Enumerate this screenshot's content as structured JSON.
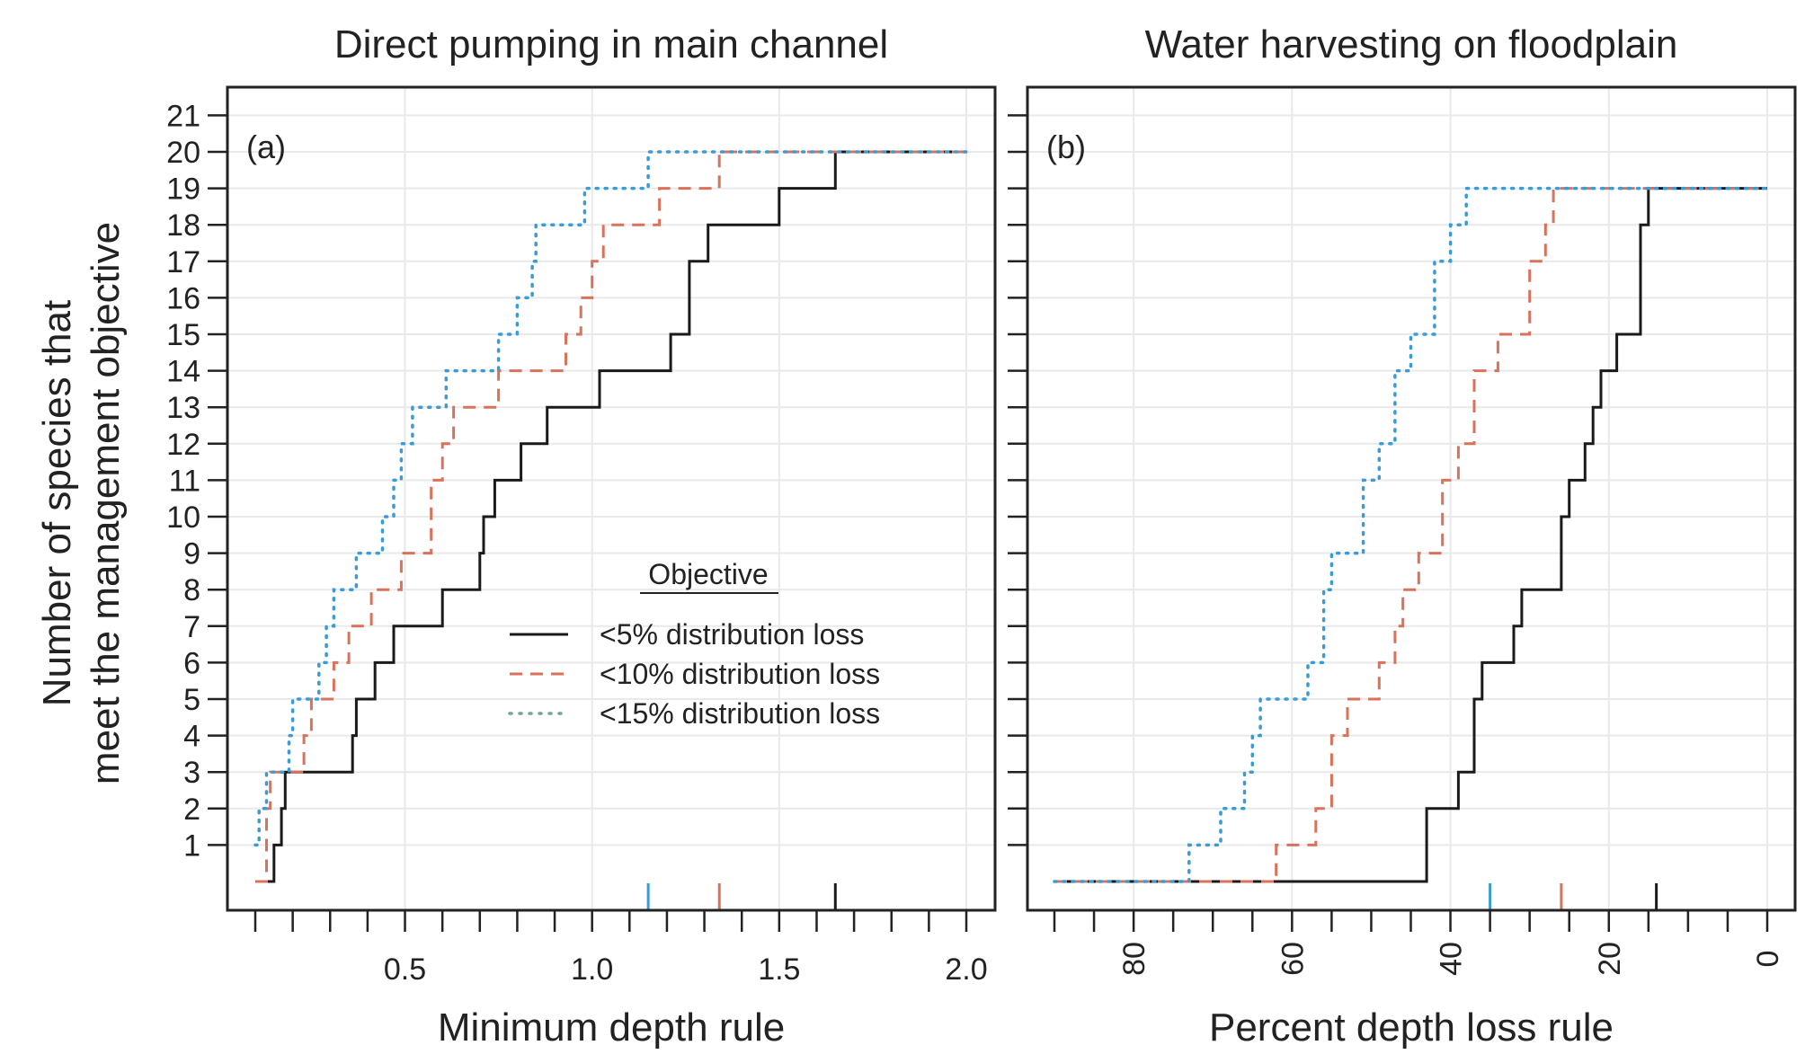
{
  "figure": {
    "ylabel_line1": "Number of species that",
    "ylabel_line2": "meet the management objective"
  },
  "legend": {
    "title": "Objective",
    "entries": [
      {
        "label": "<5% distribution loss",
        "color": "#1a1a1a",
        "dash": "solid"
      },
      {
        "label": "<10% distribution loss",
        "color": "#d9725b",
        "dash": "dashed"
      },
      {
        "label": "<15% distribution loss",
        "color": "#3a9bd5",
        "dash": "dotted"
      }
    ]
  },
  "chart_data": [
    {
      "type": "line",
      "panel_label": "(a)",
      "title": "Direct pumping in main channel",
      "xlabel": "Minimum depth rule",
      "xlim": [
        0.1,
        2.0
      ],
      "ylim": [
        0,
        21
      ],
      "x_ticks": [
        0.5,
        1.0,
        1.5,
        2.0
      ],
      "x_tick_labels": [
        "0.5",
        "1.0",
        "1.5",
        "2.0"
      ],
      "x_minor_step": 0.1,
      "y_ticks": [
        1,
        2,
        3,
        4,
        5,
        6,
        7,
        8,
        9,
        10,
        11,
        12,
        13,
        14,
        15,
        16,
        17,
        18,
        19,
        20,
        21
      ],
      "y_tick_labels": [
        "1",
        "2",
        "3",
        "4",
        "5",
        "6",
        "7",
        "8",
        "9",
        "10",
        "11",
        "12",
        "13",
        "14",
        "15",
        "16",
        "17",
        "18",
        "19",
        "20",
        "21"
      ],
      "grid": true,
      "x_reversed": false,
      "series": [
        {
          "name": "<5% distribution loss",
          "color": "#1a1a1a",
          "dash": "solid",
          "steps": [
            [
              0.1,
              0
            ],
            [
              0.15,
              1
            ],
            [
              0.17,
              2
            ],
            [
              0.18,
              3
            ],
            [
              0.36,
              4
            ],
            [
              0.37,
              5
            ],
            [
              0.39,
              5
            ],
            [
              0.42,
              6
            ],
            [
              0.45,
              6
            ],
            [
              0.47,
              7
            ],
            [
              0.57,
              7
            ],
            [
              0.6,
              8
            ],
            [
              0.67,
              8
            ],
            [
              0.7,
              9
            ],
            [
              0.71,
              10
            ],
            [
              0.73,
              10
            ],
            [
              0.74,
              11
            ],
            [
              0.79,
              11
            ],
            [
              0.81,
              12
            ],
            [
              0.86,
              12
            ],
            [
              0.88,
              13
            ],
            [
              0.99,
              13
            ],
            [
              1.02,
              14
            ],
            [
              1.19,
              14
            ],
            [
              1.21,
              15
            ],
            [
              1.23,
              15
            ],
            [
              1.26,
              17
            ],
            [
              1.29,
              17
            ],
            [
              1.31,
              18
            ],
            [
              1.46,
              18
            ],
            [
              1.5,
              19
            ],
            [
              1.62,
              19
            ],
            [
              1.65,
              20
            ],
            [
              2.0,
              20
            ]
          ],
          "rug_x": 1.65
        },
        {
          "name": "<10% distribution loss",
          "color": "#d9725b",
          "dash": "dashed",
          "steps": [
            [
              0.1,
              0
            ],
            [
              0.13,
              2
            ],
            [
              0.14,
              3
            ],
            [
              0.23,
              4
            ],
            [
              0.25,
              5
            ],
            [
              0.29,
              5
            ],
            [
              0.31,
              6
            ],
            [
              0.34,
              6
            ],
            [
              0.35,
              7
            ],
            [
              0.38,
              7
            ],
            [
              0.41,
              8
            ],
            [
              0.46,
              8
            ],
            [
              0.49,
              9
            ],
            [
              0.53,
              9
            ],
            [
              0.57,
              11
            ],
            [
              0.6,
              12
            ],
            [
              0.63,
              13
            ],
            [
              0.72,
              13
            ],
            [
              0.75,
              14
            ],
            [
              0.89,
              14
            ],
            [
              0.93,
              15
            ],
            [
              0.97,
              16
            ],
            [
              1.0,
              17
            ],
            [
              1.03,
              18
            ],
            [
              1.15,
              18
            ],
            [
              1.18,
              19
            ],
            [
              1.31,
              19
            ],
            [
              1.34,
              20
            ],
            [
              2.0,
              20
            ]
          ],
          "rug_x": 1.34
        },
        {
          "name": "<15% distribution loss",
          "color": "#3a9bd5",
          "dash": "dotted",
          "steps": [
            [
              0.1,
              1
            ],
            [
              0.11,
              2
            ],
            [
              0.13,
              3
            ],
            [
              0.17,
              3
            ],
            [
              0.19,
              4
            ],
            [
              0.2,
              5
            ],
            [
              0.23,
              5
            ],
            [
              0.27,
              6
            ],
            [
              0.29,
              7
            ],
            [
              0.31,
              8
            ],
            [
              0.35,
              8
            ],
            [
              0.37,
              9
            ],
            [
              0.42,
              9
            ],
            [
              0.44,
              10
            ],
            [
              0.47,
              11
            ],
            [
              0.49,
              12
            ],
            [
              0.52,
              13
            ],
            [
              0.58,
              13
            ],
            [
              0.61,
              14
            ],
            [
              0.72,
              14
            ],
            [
              0.75,
              15
            ],
            [
              0.8,
              16
            ],
            [
              0.84,
              17
            ],
            [
              0.85,
              18
            ],
            [
              0.93,
              18
            ],
            [
              0.98,
              19
            ],
            [
              1.11,
              19
            ],
            [
              1.15,
              20
            ],
            [
              2.0,
              20
            ]
          ],
          "rug_x": 1.15
        }
      ]
    },
    {
      "type": "line",
      "panel_label": "(b)",
      "title": "Water harvesting on floodplain",
      "xlabel": "Percent depth loss rule",
      "xlim": [
        90,
        0
      ],
      "ylim": [
        0,
        21
      ],
      "x_ticks": [
        80,
        60,
        40,
        20,
        0
      ],
      "x_tick_labels": [
        "80",
        "60",
        "40",
        "20",
        "0"
      ],
      "x_minor_step": 5,
      "y_ticks": [
        1,
        2,
        3,
        4,
        5,
        6,
        7,
        8,
        9,
        10,
        11,
        12,
        13,
        14,
        15,
        16,
        17,
        18,
        19,
        20,
        21
      ],
      "grid": true,
      "x_reversed": true,
      "series": [
        {
          "name": "<5% distribution loss",
          "color": "#1a1a1a",
          "dash": "solid",
          "steps": [
            [
              90,
              0
            ],
            [
              44,
              0
            ],
            [
              43,
              2
            ],
            [
              40,
              2
            ],
            [
              39,
              3
            ],
            [
              38,
              3
            ],
            [
              37,
              5
            ],
            [
              36,
              6
            ],
            [
              33,
              6
            ],
            [
              32,
              7
            ],
            [
              31,
              8
            ],
            [
              27,
              8
            ],
            [
              26,
              10
            ],
            [
              25,
              11
            ],
            [
              24,
              11
            ],
            [
              23,
              12
            ],
            [
              22,
              13
            ],
            [
              21,
              14
            ],
            [
              20,
              14
            ],
            [
              19,
              15
            ],
            [
              17,
              15
            ],
            [
              16,
              18
            ],
            [
              15,
              19
            ],
            [
              0,
              19
            ]
          ],
          "rug_x": 14
        },
        {
          "name": "<10% distribution loss",
          "color": "#d9725b",
          "dash": "dashed",
          "steps": [
            [
              90,
              0
            ],
            [
              63,
              0
            ],
            [
              62,
              1
            ],
            [
              58,
              1
            ],
            [
              57,
              2
            ],
            [
              56,
              2
            ],
            [
              55,
              4
            ],
            [
              53,
              5
            ],
            [
              51,
              5
            ],
            [
              49,
              6
            ],
            [
              47,
              7
            ],
            [
              46,
              8
            ],
            [
              44,
              9
            ],
            [
              42,
              9
            ],
            [
              41,
              11
            ],
            [
              40,
              11
            ],
            [
              39,
              12
            ],
            [
              37,
              14
            ],
            [
              36,
              14
            ],
            [
              34,
              15
            ],
            [
              32,
              15
            ],
            [
              30,
              17
            ],
            [
              28,
              18
            ],
            [
              27,
              19
            ],
            [
              0,
              19
            ]
          ],
          "rug_x": 26
        },
        {
          "name": "<15% distribution loss",
          "color": "#3a9bd5",
          "dash": "dotted",
          "steps": [
            [
              90,
              0
            ],
            [
              74,
              0
            ],
            [
              73,
              1
            ],
            [
              70,
              1
            ],
            [
              69,
              2
            ],
            [
              67,
              2
            ],
            [
              66,
              3
            ],
            [
              65,
              4
            ],
            [
              64,
              5
            ],
            [
              59,
              5
            ],
            [
              58,
              6
            ],
            [
              56,
              8
            ],
            [
              55,
              9
            ],
            [
              52,
              9
            ],
            [
              51,
              11
            ],
            [
              49,
              12
            ],
            [
              47,
              14
            ],
            [
              45,
              15
            ],
            [
              43,
              15
            ],
            [
              42,
              17
            ],
            [
              40,
              18
            ],
            [
              38,
              19
            ],
            [
              0,
              19
            ]
          ],
          "rug_x": 35
        }
      ]
    }
  ]
}
